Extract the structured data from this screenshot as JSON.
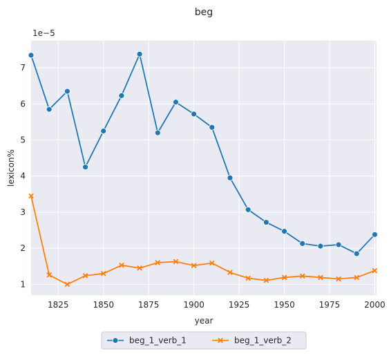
{
  "chart_data": {
    "type": "line",
    "title": "beg",
    "xlabel": "year",
    "ylabel": "lexicon%",
    "y_offset_label": "1e−5",
    "xlim": [
      1810,
      2001
    ],
    "ylim": [
      0.7,
      7.75
    ],
    "x_ticks": [
      1825,
      1850,
      1875,
      1900,
      1925,
      1950,
      1975,
      2000
    ],
    "y_ticks": [
      1,
      2,
      3,
      4,
      5,
      6,
      7
    ],
    "grid": true,
    "legend_position": "bottom-center",
    "x": [
      1810,
      1820,
      1830,
      1840,
      1850,
      1860,
      1870,
      1880,
      1890,
      1900,
      1910,
      1920,
      1930,
      1940,
      1950,
      1960,
      1970,
      1980,
      1990,
      2000
    ],
    "series": [
      {
        "name": "beg_1_verb_1",
        "color": "#1f77b4",
        "marker": "circle",
        "values": [
          7.35,
          5.85,
          6.35,
          4.25,
          5.25,
          6.23,
          7.38,
          5.2,
          6.05,
          5.72,
          5.35,
          3.95,
          3.07,
          2.72,
          2.47,
          2.13,
          2.06,
          2.1,
          1.85,
          2.38
        ]
      },
      {
        "name": "beg_1_verb_2",
        "color": "#ff7f0e",
        "marker": "x",
        "values": [
          3.45,
          1.26,
          1.0,
          1.24,
          1.3,
          1.53,
          1.45,
          1.6,
          1.63,
          1.52,
          1.59,
          1.33,
          1.17,
          1.11,
          1.19,
          1.23,
          1.19,
          1.15,
          1.19,
          1.38
        ]
      }
    ]
  }
}
